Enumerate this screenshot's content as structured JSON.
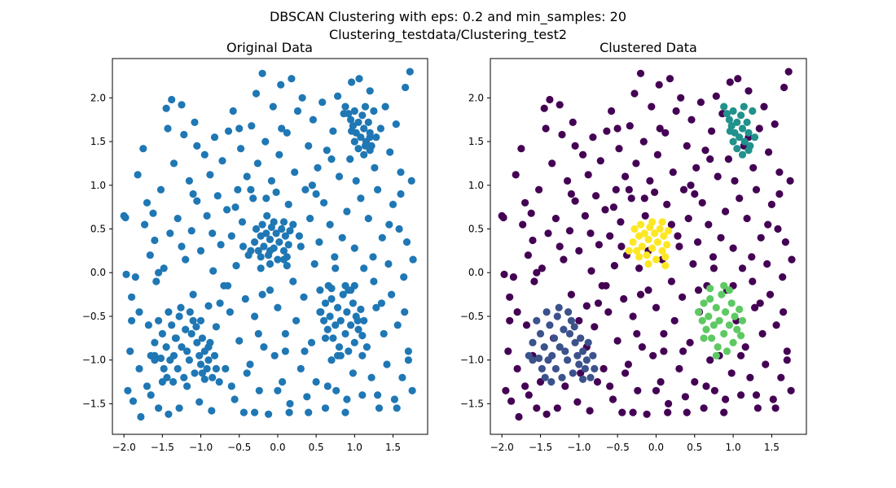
{
  "figure": {
    "suptitle_line1": "DBSCAN Clustering with eps: 0.2 and min_samples: 20",
    "suptitle_line2": "Clustering_testdata/Clustering_test2"
  },
  "chart_data": [
    {
      "type": "scatter",
      "title": "Original Data",
      "xlabel": "",
      "ylabel": "",
      "xlim": [
        -2.15,
        1.95
      ],
      "ylim": [
        -1.85,
        2.45
      ],
      "xticks": [
        -2.0,
        -1.5,
        -1.0,
        -0.5,
        0.0,
        0.5,
        1.0,
        1.5
      ],
      "yticks": [
        -1.5,
        -1.0,
        -0.5,
        0.0,
        0.5,
        1.0,
        1.5,
        2.0
      ],
      "xtick_labels": [
        "−2.0",
        "−1.5",
        "−1.0",
        "−0.5",
        "0.0",
        "0.5",
        "1.0",
        "1.5"
      ],
      "ytick_labels": [
        "−1.5",
        "−1.0",
        "−0.5",
        "0.0",
        "0.5",
        "1.0",
        "1.5",
        "2.0"
      ],
      "grid": false,
      "legend": "none",
      "color": "#1f77b4",
      "point_source": "all_points"
    },
    {
      "type": "scatter",
      "title": "Clustered Data",
      "xlabel": "",
      "ylabel": "",
      "xlim": [
        -2.15,
        1.95
      ],
      "ylim": [
        -1.85,
        2.45
      ],
      "xticks": [
        -2.0,
        -1.5,
        -1.0,
        -0.5,
        0.0,
        0.5,
        1.0,
        1.5
      ],
      "yticks": [
        -1.5,
        -1.0,
        -0.5,
        0.0,
        0.5,
        1.0,
        1.5,
        2.0
      ],
      "xtick_labels": [
        "−2.0",
        "−1.5",
        "−1.0",
        "−0.5",
        "0.0",
        "0.5",
        "1.0",
        "1.5"
      ],
      "ytick_labels": [
        "−1.5",
        "−1.0",
        "−0.5",
        "0.0",
        "0.5",
        "1.0",
        "1.5",
        "2.0"
      ],
      "grid": false,
      "legend": "none",
      "label_colors": {
        "noise": "#440154",
        "cluster_0": "#3b528b",
        "cluster_1": "#21918c",
        "cluster_2": "#5ec962",
        "cluster_3": "#fde725"
      },
      "point_source": "all_points"
    }
  ],
  "points": {
    "noise": [
      [
        -2.0,
        0.65
      ],
      [
        -1.98,
        0.63
      ],
      [
        -1.97,
        -0.02
      ],
      [
        -1.95,
        -1.35
      ],
      [
        -1.92,
        -0.9
      ],
      [
        -1.9,
        -0.28
      ],
      [
        -1.88,
        -1.47
      ],
      [
        -1.85,
        -0.05
      ],
      [
        -1.82,
        1.12
      ],
      [
        -1.8,
        -0.45
      ],
      [
        -1.78,
        -1.65
      ],
      [
        -1.75,
        1.42
      ],
      [
        -1.73,
        0.55
      ],
      [
        -1.7,
        -1.3
      ],
      [
        -1.68,
        -0.6
      ],
      [
        -1.66,
        0.2
      ],
      [
        -1.65,
        -1.4
      ],
      [
        -1.62,
        0.68
      ],
      [
        -1.6,
        0.37
      ],
      [
        -1.58,
        -0.1
      ],
      [
        -1.55,
        -1.55
      ],
      [
        -1.52,
        0.95
      ],
      [
        -1.5,
        -1.25
      ],
      [
        -1.48,
        0.05
      ],
      [
        -1.45,
        1.88
      ],
      [
        -1.43,
        1.65
      ],
      [
        -1.42,
        -1.62
      ],
      [
        -1.4,
        0.45
      ],
      [
        -1.38,
        1.98
      ],
      [
        -1.35,
        1.25
      ],
      [
        -1.33,
        -0.75
      ],
      [
        -1.3,
        0.62
      ],
      [
        -1.28,
        -1.55
      ],
      [
        -1.25,
        1.92
      ],
      [
        -1.22,
        1.58
      ],
      [
        -1.2,
        0.15
      ],
      [
        -1.18,
        -1.3
      ],
      [
        -1.15,
        1.05
      ],
      [
        -1.12,
        0.48
      ],
      [
        -1.1,
        -0.25
      ],
      [
        -1.08,
        1.72
      ],
      [
        -1.05,
        0.82
      ],
      [
        -1.02,
        -1.48
      ],
      [
        -1.0,
        0.25
      ],
      [
        -0.98,
        -1.15
      ],
      [
        -0.95,
        1.35
      ],
      [
        -0.92,
        0.65
      ],
      [
        -0.9,
        -0.38
      ],
      [
        -0.88,
        1.12
      ],
      [
        -0.86,
        -1.58
      ],
      [
        -0.84,
        0.02
      ],
      [
        -0.82,
        1.55
      ],
      [
        -0.8,
        -0.62
      ],
      [
        -0.78,
        0.88
      ],
      [
        -0.76,
        -1.25
      ],
      [
        -0.74,
        0.32
      ],
      [
        -0.72,
        1.28
      ],
      [
        -0.7,
        -0.15
      ],
      [
        -0.68,
        -1.1
      ],
      [
        -0.66,
        0.72
      ],
      [
        -0.64,
        1.62
      ],
      [
        -0.62,
        -0.45
      ],
      [
        -0.6,
        0.42
      ],
      [
        -0.58,
        1.85
      ],
      [
        -0.56,
        -1.45
      ],
      [
        -0.54,
        0.08
      ],
      [
        -0.52,
        0.95
      ],
      [
        -0.5,
        -0.78
      ],
      [
        -0.48,
        1.42
      ],
      [
        -0.46,
        0.58
      ],
      [
        -0.44,
        -1.6
      ],
      [
        -0.42,
        -0.3
      ],
      [
        -0.4,
        1.1
      ],
      [
        -0.38,
        0.2
      ],
      [
        -0.36,
        -1.05
      ],
      [
        -0.34,
        1.68
      ],
      [
        -0.32,
        0.85
      ],
      [
        -0.3,
        -0.5
      ],
      [
        -0.28,
        2.05
      ],
      [
        -0.26,
        1.25
      ],
      [
        -0.24,
        -1.35
      ],
      [
        -0.22,
        0.05
      ],
      [
        -0.2,
        2.28
      ],
      [
        -0.18,
        -0.85
      ],
      [
        -0.16,
        1.5
      ],
      [
        -0.14,
        0.65
      ],
      [
        -0.12,
        -1.62
      ],
      [
        -0.1,
        -0.2
      ],
      [
        -0.08,
        1.05
      ],
      [
        -0.06,
        1.9
      ],
      [
        -0.04,
        -0.95
      ],
      [
        -0.02,
        0.92
      ],
      [
        0.0,
        -0.4
      ],
      [
        0.02,
        1.35
      ],
      [
        0.04,
        2.15
      ],
      [
        0.06,
        -1.25
      ],
      [
        0.08,
        0.15
      ],
      [
        0.1,
        -0.7
      ],
      [
        0.12,
        1.6
      ],
      [
        0.14,
        0.78
      ],
      [
        0.16,
        -1.5
      ],
      [
        0.18,
        2.22
      ],
      [
        0.2,
        -0.1
      ],
      [
        0.22,
        1.15
      ],
      [
        0.24,
        -0.55
      ],
      [
        0.26,
        1.85
      ],
      [
        0.28,
        0.42
      ],
      [
        0.3,
        -1.1
      ],
      [
        0.32,
        2.0
      ],
      [
        0.34,
        -0.28
      ],
      [
        0.36,
        0.95
      ],
      [
        0.38,
        -1.42
      ],
      [
        0.4,
        1.45
      ],
      [
        0.42,
        0.62
      ],
      [
        0.44,
        -0.8
      ],
      [
        0.46,
        1.75
      ],
      [
        0.48,
        0.1
      ],
      [
        0.5,
        -1.25
      ],
      [
        0.52,
        1.2
      ],
      [
        0.54,
        0.35
      ],
      [
        0.56,
        -0.45
      ],
      [
        0.58,
        1.95
      ],
      [
        0.6,
        0.8
      ],
      [
        0.62,
        -1.55
      ],
      [
        0.64,
        1.4
      ],
      [
        0.66,
        -0.15
      ],
      [
        0.68,
        0.55
      ],
      [
        0.7,
        -1.0
      ],
      [
        0.72,
        1.62
      ],
      [
        0.74,
        0.18
      ],
      [
        0.76,
        -1.35
      ],
      [
        0.78,
        2.02
      ],
      [
        0.8,
        1.1
      ],
      [
        0.82,
        -0.95
      ],
      [
        0.84,
        0.4
      ],
      [
        0.86,
        1.82
      ],
      [
        0.88,
        -1.6
      ],
      [
        0.9,
        0.7
      ],
      [
        0.92,
        -0.2
      ],
      [
        0.94,
        1.3
      ],
      [
        0.96,
        2.18
      ],
      [
        0.98,
        -1.15
      ],
      [
        1.0,
        0.28
      ],
      [
        1.02,
        1.05
      ],
      [
        1.04,
        -0.55
      ],
      [
        1.06,
        2.22
      ],
      [
        1.08,
        0.85
      ],
      [
        1.1,
        -1.4
      ],
      [
        1.12,
        0.05
      ],
      [
        1.14,
        1.45
      ],
      [
        1.16,
        -0.85
      ],
      [
        1.18,
        0.62
      ],
      [
        1.2,
        2.08
      ],
      [
        1.22,
        -1.2
      ],
      [
        1.24,
        0.18
      ],
      [
        1.26,
        1.2
      ],
      [
        1.28,
        -0.4
      ],
      [
        1.3,
        0.95
      ],
      [
        1.32,
        -1.55
      ],
      [
        1.34,
        1.65
      ],
      [
        1.36,
        0.4
      ],
      [
        1.38,
        -0.7
      ],
      [
        1.4,
        1.9
      ],
      [
        1.42,
        -1.05
      ],
      [
        1.44,
        0.1
      ],
      [
        1.46,
        1.38
      ],
      [
        1.48,
        -0.25
      ],
      [
        1.5,
        0.78
      ],
      [
        1.52,
        -1.45
      ],
      [
        1.54,
        1.7
      ],
      [
        1.56,
        -0.6
      ],
      [
        1.58,
        0.5
      ],
      [
        1.6,
        1.15
      ],
      [
        1.62,
        -1.2
      ],
      [
        1.64,
        -0.05
      ],
      [
        1.66,
        2.12
      ],
      [
        1.68,
        0.35
      ],
      [
        1.7,
        -0.9
      ],
      [
        1.72,
        2.3
      ],
      [
        1.74,
        1.05
      ],
      [
        1.75,
        -1.35
      ],
      [
        1.76,
        0.15
      ],
      [
        -1.9,
        -0.55
      ],
      [
        -1.6,
        -0.95
      ],
      [
        -0.9,
        -0.85
      ],
      [
        -0.65,
        -0.15
      ],
      [
        -0.45,
        0.3
      ],
      [
        -0.2,
        -0.25
      ],
      [
        0.3,
        0.3
      ],
      [
        0.55,
        -0.2
      ],
      [
        0.75,
        0.05
      ],
      [
        1.0,
        -0.15
      ],
      [
        -1.7,
        0.8
      ],
      [
        -1.1,
        0.9
      ],
      [
        -0.35,
        0.95
      ],
      [
        0.45,
        1.0
      ],
      [
        1.35,
        -0.35
      ],
      [
        -0.6,
        -1.3
      ],
      [
        0.15,
        -1.6
      ],
      [
        -0.3,
        -1.6
      ],
      [
        -1.05,
        1.45
      ],
      [
        -0.5,
        1.65
      ],
      [
        0.05,
        1.65
      ],
      [
        0.7,
        1.3
      ],
      [
        1.45,
        0.55
      ],
      [
        1.65,
        -0.45
      ],
      [
        -1.55,
        0.0
      ],
      [
        -0.15,
        0.85
      ],
      [
        0.35,
        -0.9
      ],
      [
        0.65,
        -1.3
      ],
      [
        1.25,
        -0.1
      ],
      [
        -0.75,
        -0.35
      ],
      [
        -0.25,
        -0.7
      ],
      [
        0.1,
        -0.9
      ],
      [
        0.9,
        -1.45
      ],
      [
        1.55,
        -1.55
      ],
      [
        -1.25,
        0.3
      ],
      [
        -0.85,
        0.45
      ],
      [
        -0.55,
        0.75
      ],
      [
        0.2,
        0.55
      ],
      [
        0.5,
        0.9
      ],
      [
        1.2,
        1.55
      ],
      [
        1.6,
        0.9
      ],
      [
        -1.8,
        -1.1
      ],
      [
        -1.0,
        -0.55
      ],
      [
        -0.4,
        -1.15
      ],
      [
        0.0,
        -1.35
      ],
      [
        0.4,
        -1.6
      ],
      [
        1.1,
        -0.95
      ],
      [
        1.3,
        -1.4
      ],
      [
        1.7,
        -1.0
      ],
      [
        -0.1,
        0.25
      ]
    ],
    "cluster_0": [
      [
        -1.55,
        -0.55
      ],
      [
        -1.5,
        -0.7
      ],
      [
        -1.45,
        -0.85
      ],
      [
        -1.42,
        -0.45
      ],
      [
        -1.4,
        -1.0
      ],
      [
        -1.38,
        -0.6
      ],
      [
        -1.35,
        -0.95
      ],
      [
        -1.32,
        -0.75
      ],
      [
        -1.3,
        -1.1
      ],
      [
        -1.28,
        -0.5
      ],
      [
        -1.25,
        -0.85
      ],
      [
        -1.22,
        -1.2
      ],
      [
        -1.2,
        -0.65
      ],
      [
        -1.18,
        -0.9
      ],
      [
        -1.15,
        -1.0
      ],
      [
        -1.12,
        -0.7
      ],
      [
        -1.1,
        -0.55
      ],
      [
        -1.08,
        -1.15
      ],
      [
        -1.05,
        -0.8
      ],
      [
        -1.02,
        -0.95
      ],
      [
        -1.0,
        -1.05
      ],
      [
        -0.98,
        -0.75
      ],
      [
        -0.95,
        -0.9
      ],
      [
        -0.92,
        -1.1
      ],
      [
        -0.9,
        -1.0
      ],
      [
        -0.88,
        -0.8
      ],
      [
        -0.85,
        -1.2
      ],
      [
        -0.82,
        -0.95
      ],
      [
        -0.8,
        -1.1
      ],
      [
        -1.6,
        -0.8
      ],
      [
        -1.6,
        -1.0
      ],
      [
        -1.65,
        -0.95
      ],
      [
        -1.48,
        -1.1
      ],
      [
        -1.44,
        -1.2
      ],
      [
        -1.36,
        -1.25
      ],
      [
        -1.26,
        -0.4
      ],
      [
        -1.14,
        -0.45
      ],
      [
        -1.06,
        -0.62
      ],
      [
        -0.95,
        -1.22
      ],
      [
        -1.52,
        -0.98
      ]
    ],
    "cluster_1": [
      [
        0.88,
        1.9
      ],
      [
        0.92,
        1.82
      ],
      [
        0.95,
        1.75
      ],
      [
        0.98,
        1.68
      ],
      [
        1.0,
        1.85
      ],
      [
        1.02,
        1.6
      ],
      [
        1.05,
        1.72
      ],
      [
        1.08,
        1.55
      ],
      [
        1.1,
        1.8
      ],
      [
        1.12,
        1.65
      ],
      [
        1.15,
        1.5
      ],
      [
        1.18,
        1.72
      ],
      [
        1.2,
        1.6
      ],
      [
        1.22,
        1.45
      ],
      [
        1.25,
        1.85
      ],
      [
        1.28,
        1.55
      ],
      [
        1.0,
        1.5
      ],
      [
        1.05,
        1.42
      ],
      [
        1.12,
        1.35
      ],
      [
        1.2,
        1.4
      ],
      [
        0.96,
        1.62
      ],
      [
        1.14,
        1.9
      ]
    ],
    "cluster_2": [
      [
        0.55,
        -0.45
      ],
      [
        0.6,
        -0.55
      ],
      [
        0.62,
        -0.35
      ],
      [
        0.65,
        -0.65
      ],
      [
        0.68,
        -0.5
      ],
      [
        0.7,
        -0.3
      ],
      [
        0.72,
        -0.75
      ],
      [
        0.75,
        -0.6
      ],
      [
        0.78,
        -0.4
      ],
      [
        0.8,
        -0.85
      ],
      [
        0.82,
        -0.55
      ],
      [
        0.85,
        -0.25
      ],
      [
        0.88,
        -0.7
      ],
      [
        0.9,
        -0.45
      ],
      [
        0.92,
        -0.9
      ],
      [
        0.95,
        -0.6
      ],
      [
        0.98,
        -0.35
      ],
      [
        1.0,
        -0.8
      ],
      [
        1.02,
        -0.5
      ],
      [
        1.05,
        -0.65
      ],
      [
        1.08,
        -0.42
      ],
      [
        1.1,
        -0.72
      ],
      [
        0.7,
        -0.18
      ],
      [
        0.88,
        -0.15
      ],
      [
        0.62,
        -0.75
      ],
      [
        0.78,
        -0.95
      ],
      [
        1.12,
        -0.55
      ],
      [
        0.95,
        -0.2
      ]
    ],
    "cluster_3": [
      [
        -0.3,
        0.35
      ],
      [
        -0.28,
        0.5
      ],
      [
        -0.25,
        0.25
      ],
      [
        -0.22,
        0.42
      ],
      [
        -0.2,
        0.55
      ],
      [
        -0.18,
        0.3
      ],
      [
        -0.15,
        0.45
      ],
      [
        -0.12,
        0.2
      ],
      [
        -0.1,
        0.38
      ],
      [
        -0.08,
        0.52
      ],
      [
        -0.05,
        0.28
      ],
      [
        -0.02,
        0.45
      ],
      [
        0.0,
        0.15
      ],
      [
        0.02,
        0.35
      ],
      [
        0.05,
        0.5
      ],
      [
        0.08,
        0.25
      ],
      [
        0.1,
        0.42
      ],
      [
        0.12,
        0.18
      ],
      [
        0.14,
        0.32
      ],
      [
        0.16,
        0.48
      ],
      [
        -0.05,
        0.58
      ],
      [
        0.08,
        0.58
      ],
      [
        -0.22,
        0.18
      ],
      [
        0.12,
        0.08
      ],
      [
        -0.35,
        0.25
      ],
      [
        -0.1,
        0.1
      ]
    ]
  }
}
